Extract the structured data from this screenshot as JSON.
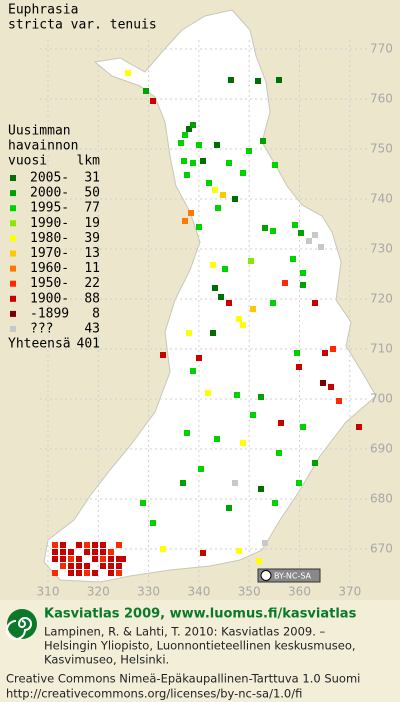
{
  "map": {
    "title": [
      "Euphrasia",
      "stricta var. tenuis"
    ],
    "legend": {
      "heading": [
        "Uusimman",
        "havainnon"
      ],
      "year_header": "vuosi",
      "count_header": "lkm",
      "rows": [
        {
          "label": "2005-",
          "count": 31,
          "color": "#006e00"
        },
        {
          "label": "2000-",
          "count": 50,
          "color": "#00a000"
        },
        {
          "label": "1995-",
          "count": 77,
          "color": "#00d200"
        },
        {
          "label": "1990-",
          "count": 19,
          "color": "#8ce600"
        },
        {
          "label": "1980-",
          "count": 39,
          "color": "#ffff00"
        },
        {
          "label": "1970-",
          "count": 13,
          "color": "#ffc800"
        },
        {
          "label": "1960-",
          "count": 11,
          "color": "#ff7800"
        },
        {
          "label": "1950-",
          "count": 22,
          "color": "#ff2800"
        },
        {
          "label": "1900-",
          "count": 88,
          "color": "#c80000"
        },
        {
          "label": "-1899",
          "count": 8,
          "color": "#780000"
        },
        {
          "label": "???",
          "count": 43,
          "color": "#c8c8c8"
        }
      ],
      "total_label": "Yhteensä",
      "total": 401
    },
    "y_labels": [
      770,
      760,
      750,
      740,
      730,
      720,
      710,
      700,
      690,
      680,
      670
    ],
    "x_labels": [
      310,
      320,
      330,
      340,
      350,
      360,
      370
    ],
    "cc_badge": "BY-NC-SA"
  },
  "footer": {
    "heading": "Kasviatlas 2009, www.luomus.fi/kasviatlas",
    "citation": [
      "Lampinen, R. & Lahti, T. 2010: Kasviatlas 2009. –",
      "Helsingin Yliopisto, Luonnontieteellinen keskusmuseo,",
      "Kasvimuseo, Helsinki."
    ],
    "license": [
      "Creative Commons Nimeä-Epäkaupallinen-Tarttuva 1.0 Suomi",
      "http://creativecommons.org/licenses/by-nc-sa/1.0/fi"
    ]
  }
}
